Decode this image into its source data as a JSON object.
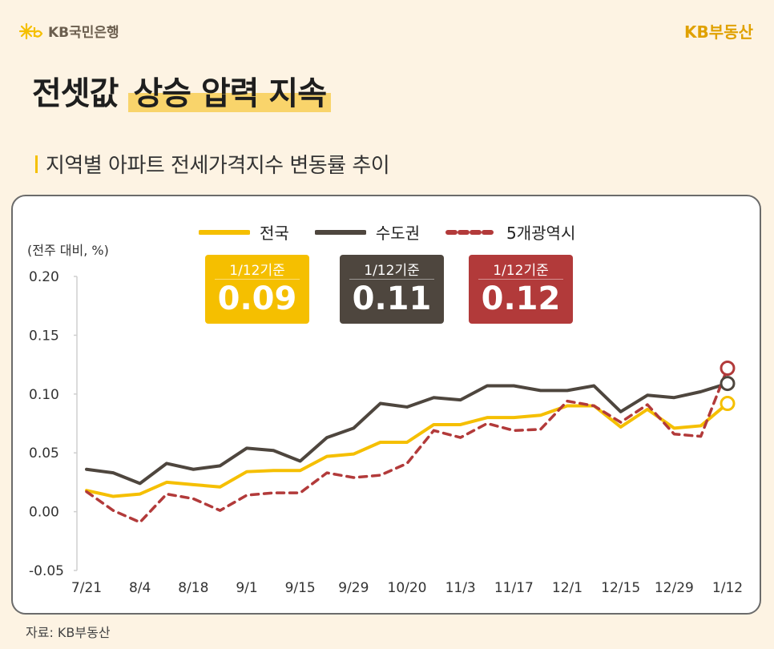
{
  "header": {
    "bank_name": "KB국민은행",
    "brand": "KB부동산"
  },
  "title": {
    "part1": "전셋값",
    "highlight": "상승 압력 지속"
  },
  "subtitle": "지역별 아파트 전세가격지수 변동률 추이",
  "unit_label": "(전주 대비, %)",
  "callouts": [
    {
      "caption": "1/12기준",
      "value": "0.09",
      "color": "#f5bf00"
    },
    {
      "caption": "1/12기준",
      "value": "0.11",
      "color": "#4e463e"
    },
    {
      "caption": "1/12기준",
      "value": "0.12",
      "color": "#b23a3a"
    }
  ],
  "source": "자료: KB부동산",
  "chart_data": {
    "type": "line",
    "x": [
      "7/21",
      "7/28",
      "8/4",
      "8/11",
      "8/18",
      "8/25",
      "9/1",
      "9/8",
      "9/15",
      "9/22",
      "9/29",
      "10/13",
      "10/20",
      "10/27",
      "11/3",
      "11/10",
      "11/17",
      "11/24",
      "12/1",
      "12/8",
      "12/15",
      "12/22",
      "12/29",
      "1/5",
      "1/12"
    ],
    "x_tick_labels": [
      "7/21",
      "8/4",
      "8/18",
      "9/1",
      "9/15",
      "9/29",
      "10/20",
      "11/3",
      "11/17",
      "12/1",
      "12/15",
      "12/29",
      "1/12"
    ],
    "ylim": [
      -0.05,
      0.2
    ],
    "yticks": [
      "0.20",
      "0.15",
      "0.10",
      "0.05",
      "0.00",
      "-0.05"
    ],
    "series": [
      {
        "name": "전국",
        "color": "#f5bf00",
        "style": "solid",
        "values": [
          0.018,
          0.013,
          0.015,
          0.025,
          0.023,
          0.021,
          0.034,
          0.035,
          0.035,
          0.047,
          0.049,
          0.059,
          0.059,
          0.074,
          0.074,
          0.08,
          0.08,
          0.082,
          0.09,
          0.09,
          0.072,
          0.087,
          0.071,
          0.073,
          0.092
        ]
      },
      {
        "name": "수도권",
        "color": "#4e463e",
        "style": "solid",
        "values": [
          0.036,
          0.033,
          0.024,
          0.041,
          0.036,
          0.039,
          0.054,
          0.052,
          0.043,
          0.063,
          0.071,
          0.092,
          0.089,
          0.097,
          0.095,
          0.107,
          0.107,
          0.103,
          0.103,
          0.107,
          0.085,
          0.099,
          0.097,
          0.102,
          0.109
        ]
      },
      {
        "name": "5개광역시",
        "color": "#b23a3a",
        "style": "dashed",
        "values": [
          0.017,
          0.001,
          -0.009,
          0.015,
          0.011,
          0.001,
          0.014,
          0.016,
          0.016,
          0.033,
          0.029,
          0.031,
          0.041,
          0.069,
          0.063,
          0.075,
          0.069,
          0.07,
          0.094,
          0.09,
          0.076,
          0.091,
          0.066,
          0.064,
          0.122
        ]
      }
    ],
    "grid": false,
    "legend_placement": "top-center"
  }
}
